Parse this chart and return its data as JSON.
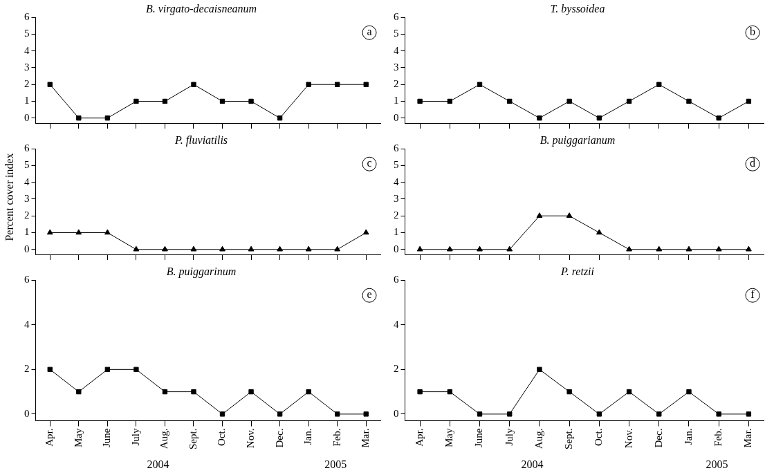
{
  "chart_data": [
    {
      "type": "line",
      "title": "B. virgato-decaisneanum",
      "categories": [
        null,
        null,
        null,
        null,
        null,
        null,
        null,
        null,
        null,
        null,
        null,
        null
      ],
      "series": [
        {
          "color": "#000000",
          "values": [
            2,
            0,
            0,
            1,
            1,
            2,
            1,
            1,
            0,
            2,
            2,
            2
          ]
        }
      ],
      "ylim": [
        -0.3,
        6
      ],
      "yticks": [
        0,
        1,
        2,
        3,
        4,
        5,
        6
      ],
      "marker": "square",
      "grid": false,
      "tick_labels": "y",
      "annotations": [
        "a"
      ]
    },
    {
      "type": "line",
      "title": "T. byssoidea",
      "categories": [
        null,
        null,
        null,
        null,
        null,
        null,
        null,
        null,
        null,
        null,
        null,
        null
      ],
      "series": [
        {
          "color": "#000000",
          "values": [
            1,
            1,
            2,
            1,
            0,
            1,
            0,
            1,
            2,
            1,
            0,
            1
          ]
        }
      ],
      "ylim": [
        -0.3,
        6
      ],
      "yticks": [
        0,
        1,
        2,
        3,
        4,
        5,
        6
      ],
      "marker": "square",
      "grid": false,
      "tick_labels": "y",
      "annotations": [
        "b"
      ]
    },
    {
      "type": "line",
      "title": "P. fluviatilis",
      "ylabel": "Percent cover index",
      "categories": [
        null,
        null,
        null,
        null,
        null,
        null,
        null,
        null,
        null,
        null,
        null,
        null
      ],
      "series": [
        {
          "color": "#000000",
          "values": [
            1,
            1,
            1,
            0,
            0,
            0,
            0,
            0,
            0,
            0,
            0,
            1
          ]
        }
      ],
      "ylim": [
        -0.3,
        6
      ],
      "yticks": [
        0,
        1,
        2,
        3,
        4,
        5,
        6
      ],
      "marker": "triangle",
      "grid": false,
      "tick_labels": "y",
      "annotations": [
        "c"
      ]
    },
    {
      "type": "line",
      "title": "B. puiggarianum",
      "categories": [
        null,
        null,
        null,
        null,
        null,
        null,
        null,
        null,
        null,
        null,
        null,
        null
      ],
      "series": [
        {
          "color": "#000000",
          "values": [
            0,
            0,
            0,
            0,
            2,
            2,
            1,
            0,
            0,
            0,
            0,
            0
          ]
        }
      ],
      "ylim": [
        -0.3,
        6
      ],
      "yticks": [
        0,
        1,
        2,
        3,
        4,
        5,
        6
      ],
      "marker": "triangle",
      "grid": false,
      "tick_labels": "y",
      "annotations": [
        "d"
      ]
    },
    {
      "type": "line",
      "title": "B. puiggarinum",
      "categories": [
        "Apr.",
        "May",
        "June",
        "July",
        "Aug.",
        "Sept.",
        "Oct.",
        "Nov.",
        "Dec.",
        "Jan.",
        "Feb.",
        "Mar."
      ],
      "series": [
        {
          "color": "#000000",
          "values": [
            2,
            1,
            2,
            2,
            1,
            1,
            0,
            1,
            0,
            1,
            0,
            0
          ]
        }
      ],
      "ylim": [
        -0.3,
        6
      ],
      "yticks": [
        0,
        2,
        4,
        6
      ],
      "marker": "square",
      "grid": false,
      "annotations": [
        "e",
        "2004",
        "2005"
      ]
    },
    {
      "type": "line",
      "title": "P. retzii",
      "categories": [
        "Apr.",
        "May",
        "June",
        "July",
        "Aug.",
        "Sept.",
        "Oct.",
        "Nov.",
        "Dec.",
        "Jan.",
        "Feb.",
        "Mar."
      ],
      "series": [
        {
          "color": "#000000",
          "values": [
            1,
            1,
            0,
            0,
            2,
            1,
            0,
            1,
            0,
            1,
            0,
            0
          ]
        }
      ],
      "ylim": [
        -0.3,
        6
      ],
      "yticks": [
        0,
        2,
        4,
        6
      ],
      "marker": "square",
      "grid": false,
      "annotations": [
        "f",
        "2004",
        "2005"
      ]
    }
  ]
}
